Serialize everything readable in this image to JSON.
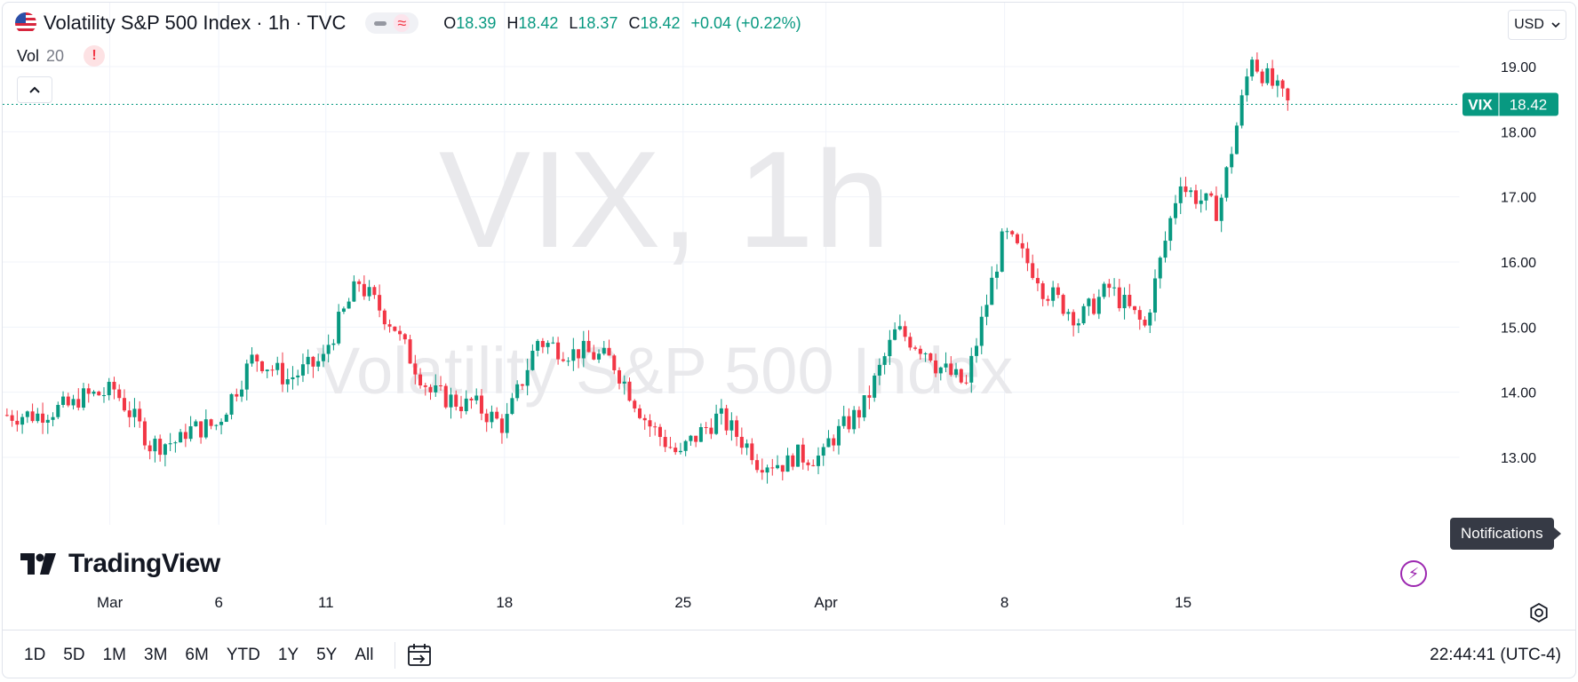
{
  "legend": {
    "title": "Volatility S&P 500 Index · 1h · TVC",
    "ohlc": [
      {
        "key": "O",
        "value": "18.39"
      },
      {
        "key": "H",
        "value": "18.42"
      },
      {
        "key": "L",
        "value": "18.37"
      },
      {
        "key": "C",
        "value": "18.42"
      }
    ],
    "change": "+0.04 (+0.22%)",
    "vol_label": "Vol",
    "vol_value": "20",
    "warning": "!"
  },
  "currency": "USD",
  "watermark": {
    "line1": "VIX, 1h",
    "line2": "Volatility S&P 500 Index"
  },
  "brand": "TradingView",
  "notification_tooltip": "Notifications",
  "price_tag": {
    "symbol": "VIX",
    "value": "18.42"
  },
  "ranges": [
    "1D",
    "5D",
    "1M",
    "3M",
    "6M",
    "YTD",
    "1Y",
    "5Y",
    "All"
  ],
  "clock": "22:44:41 (UTC-4)",
  "colors": {
    "up": "#089981",
    "down": "#f23645",
    "grid": "#f0f3fa",
    "watermark": "#e9e9ec",
    "accent": "#2962ff"
  },
  "icons": {
    "collapse": "chevron-up-icon",
    "currency": "chevron-down-icon",
    "settings": "gear-icon",
    "calendar": "calendar-range-icon",
    "bolt": "lightning-icon"
  },
  "chart_data": {
    "type": "candlestick",
    "timeframe": "1h",
    "ylim": [
      12.4,
      19.5
    ],
    "y_ticks": [
      "19.00",
      "18.00",
      "17.00",
      "16.00",
      "15.00",
      "14.00",
      "13.00"
    ],
    "x_ticks": [
      "Mar",
      "6",
      "11",
      "18",
      "25",
      "Apr",
      "8",
      "15"
    ],
    "last_price": 18.42,
    "path": [
      [
        "Feb 27",
        13.65
      ],
      [
        "Feb 28",
        13.8
      ],
      [
        "Feb 29",
        14.0
      ],
      [
        "Mar 1",
        13.35
      ],
      [
        "Mar 4",
        13.25
      ],
      [
        "Mar 5",
        13.5
      ],
      [
        "Mar 6",
        14.5
      ],
      [
        "Mar 7",
        14.2
      ],
      [
        "Mar 8",
        14.5
      ],
      [
        "Mar 11",
        15.7
      ],
      [
        "Mar 12",
        15.0
      ],
      [
        "Mar 13",
        14.0
      ],
      [
        "Mar 14",
        13.8
      ],
      [
        "Mar 15",
        13.5
      ],
      [
        "Mar 18",
        14.8
      ],
      [
        "Mar 19",
        14.6
      ],
      [
        "Mar 20",
        14.5
      ],
      [
        "Mar 21",
        13.6
      ],
      [
        "Mar 22",
        13.0
      ],
      [
        "Mar 25",
        13.6
      ],
      [
        "Mar 26",
        13.1
      ],
      [
        "Mar 27",
        12.9
      ],
      [
        "Mar 28",
        13.0
      ],
      [
        "Apr 1",
        13.7
      ],
      [
        "Apr 2",
        14.9
      ],
      [
        "Apr 3",
        14.6
      ],
      [
        "Apr 4",
        14.1
      ],
      [
        "Apr 5",
        16.3
      ],
      [
        "Apr 8",
        15.8
      ],
      [
        "Apr 9",
        15.2
      ],
      [
        "Apr 10",
        15.6
      ],
      [
        "Apr 11",
        15.0
      ],
      [
        "Apr 12",
        17.3
      ],
      [
        "Apr 15",
        16.8
      ],
      [
        "Apr 16",
        19.2
      ],
      [
        "Apr 17",
        18.42
      ]
    ]
  }
}
